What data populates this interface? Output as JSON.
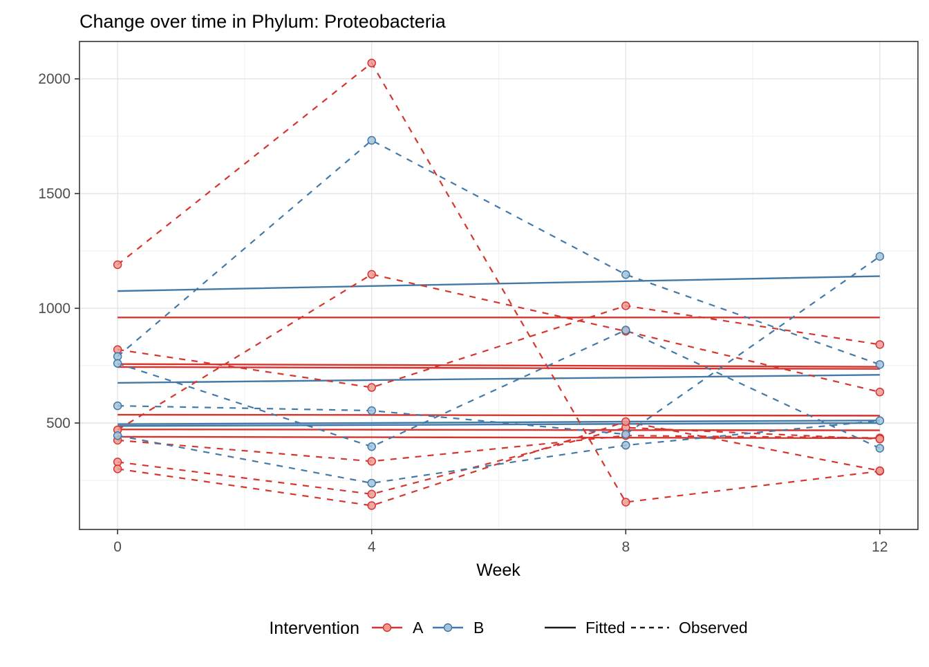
{
  "title": "Change over time in Phylum: Proteobacteria",
  "axes": {
    "x_label": "Week",
    "x_ticks": [
      0,
      4,
      8,
      12
    ],
    "x_minor": [
      2,
      6,
      10
    ],
    "x_domain": [
      -0.6,
      12.6
    ],
    "y_ticks": [
      500,
      1000,
      1500,
      2000
    ],
    "y_minor": [
      250,
      750,
      1250,
      1750
    ],
    "y_domain": [
      36,
      2163
    ],
    "grid": true
  },
  "legend": {
    "title": "Intervention",
    "groups": [
      {
        "label": "A",
        "color": "#D7342E"
      },
      {
        "label": "B",
        "color": "#4379A7"
      }
    ],
    "linetypes": [
      {
        "label": "Fitted",
        "style": "solid"
      },
      {
        "label": "Observed",
        "style": "dashed"
      }
    ]
  },
  "colors": {
    "red_line": "#D7342E",
    "red_point_fill": "#EE9B96",
    "blue_line": "#4379A7",
    "blue_point_fill": "#A5C3DB",
    "grid_major": "#E4E4E4",
    "grid_minor": "#F1F1F1",
    "panel_border": "#333333",
    "axis_text": "#4d4d4d",
    "key_line": "#1a1a1a"
  },
  "chart_data": {
    "type": "line",
    "x": [
      0,
      4,
      8,
      12
    ],
    "xlabel": "Week",
    "ylabel": "",
    "title": "Change over time in Phylum: Proteobacteria",
    "xlim": [
      -0.6,
      12.6
    ],
    "ylim": [
      36,
      2163
    ],
    "legend_position": "bottom",
    "series": [
      {
        "name": "A-subj1-observed",
        "group": "A",
        "kind": "observed",
        "values": [
          1190,
          2069,
          155,
          290
        ]
      },
      {
        "name": "A-subj2-observed",
        "group": "A",
        "kind": "observed",
        "values": [
          820,
          655,
          1011,
          842
        ]
      },
      {
        "name": "A-subj3-observed",
        "group": "A",
        "kind": "observed",
        "values": [
          470,
          1148,
          900,
          635
        ]
      },
      {
        "name": "A-subj4-observed",
        "group": "A",
        "kind": "observed",
        "values": [
          425,
          333,
          445,
          435
        ]
      },
      {
        "name": "A-subj5-observed",
        "group": "A",
        "kind": "observed",
        "values": [
          330,
          190,
          480,
          430
        ]
      },
      {
        "name": "A-subj6-observed",
        "group": "A",
        "kind": "observed",
        "values": [
          300,
          140,
          506,
          292
        ]
      },
      {
        "name": "B-subj1-observed",
        "group": "B",
        "kind": "observed",
        "values": [
          790,
          1732,
          1147,
          755
        ]
      },
      {
        "name": "B-subj2-observed",
        "group": "B",
        "kind": "observed",
        "values": [
          760,
          397,
          905,
          390
        ]
      },
      {
        "name": "B-subj3-observed",
        "group": "B",
        "kind": "observed",
        "values": [
          575,
          554,
          451,
          1226
        ]
      },
      {
        "name": "B-subj4-observed",
        "group": "B",
        "kind": "observed",
        "values": [
          445,
          238,
          403,
          510
        ]
      },
      {
        "name": "A-subj1-fitted",
        "group": "A",
        "kind": "fitted",
        "values": [
          960,
          960,
          960,
          960
        ]
      },
      {
        "name": "A-subj2-fitted",
        "group": "A",
        "kind": "fitted",
        "values": [
          757,
          753,
          749,
          745
        ]
      },
      {
        "name": "A-subj3-fitted",
        "group": "A",
        "kind": "fitted",
        "values": [
          744,
          741,
          738,
          736
        ]
      },
      {
        "name": "A-subj4-fitted",
        "group": "A",
        "kind": "fitted",
        "values": [
          536,
          535,
          533,
          532
        ]
      },
      {
        "name": "A-subj5-fitted",
        "group": "A",
        "kind": "fitted",
        "values": [
          472,
          471,
          469,
          468
        ]
      },
      {
        "name": "A-subj6-fitted",
        "group": "A",
        "kind": "fitted",
        "values": [
          440,
          438,
          436,
          434
        ]
      },
      {
        "name": "B-subj1-fitted",
        "group": "B",
        "kind": "fitted",
        "values": [
          1075,
          1097,
          1118,
          1140
        ]
      },
      {
        "name": "B-subj2-fitted",
        "group": "B",
        "kind": "fitted",
        "values": [
          675,
          687,
          698,
          710
        ]
      },
      {
        "name": "B-subj3-fitted",
        "group": "B",
        "kind": "fitted",
        "values": [
          495,
          500,
          506,
          511
        ]
      },
      {
        "name": "B-subj4-fitted",
        "group": "B",
        "kind": "fitted",
        "values": [
          487,
          491,
          496,
          500
        ]
      }
    ]
  }
}
